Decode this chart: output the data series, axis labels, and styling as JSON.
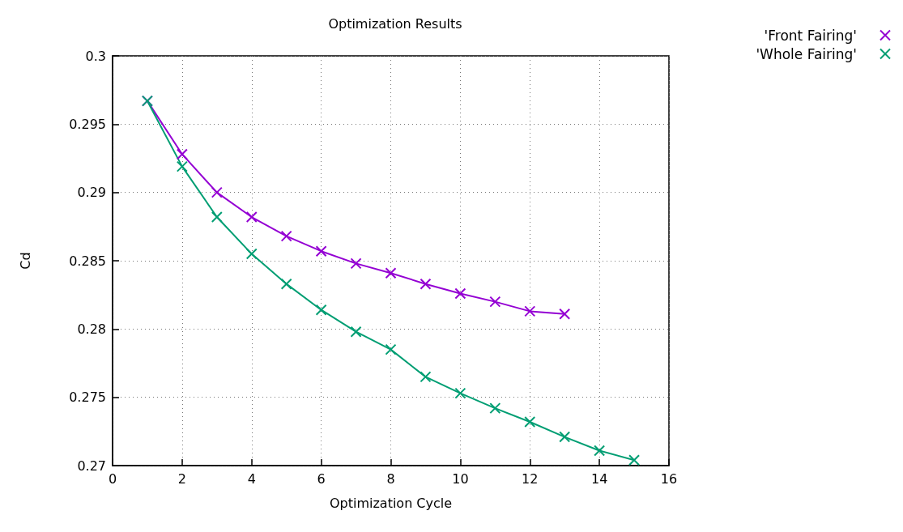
{
  "chart_data": {
    "type": "line",
    "title": "Optimization Results",
    "xlabel": "Optimization Cycle",
    "ylabel": "Cd",
    "xlim": [
      0,
      16
    ],
    "xticks": [
      0,
      2,
      4,
      6,
      8,
      10,
      12,
      14,
      16
    ],
    "ylim": [
      0.27,
      0.3
    ],
    "yticks": [
      0.27,
      0.275,
      0.28,
      0.285,
      0.29,
      0.295,
      0.3
    ],
    "grid": true,
    "legend": "top right",
    "marker": "cross",
    "line_style": "solid",
    "series": [
      {
        "name": "'Front Fairing'",
        "color": "#9400d3",
        "x": [
          1,
          2,
          3,
          4,
          5,
          6,
          7,
          8,
          9,
          10,
          11,
          12,
          13
        ],
        "values": [
          0.2967,
          0.2928,
          0.29,
          0.2882,
          0.2868,
          0.2857,
          0.2848,
          0.2841,
          0.2833,
          0.2826,
          0.282,
          0.2813,
          0.2811
        ]
      },
      {
        "name": "'Whole Fairing'",
        "color": "#009e73",
        "x": [
          1,
          2,
          3,
          4,
          5,
          6,
          7,
          8,
          9,
          10,
          11,
          12,
          13,
          14,
          15
        ],
        "values": [
          0.2967,
          0.2919,
          0.2882,
          0.2855,
          0.2833,
          0.2814,
          0.2798,
          0.2785,
          0.2765,
          0.2753,
          0.2742,
          0.2732,
          0.2721,
          0.2711,
          0.2704
        ]
      }
    ]
  }
}
